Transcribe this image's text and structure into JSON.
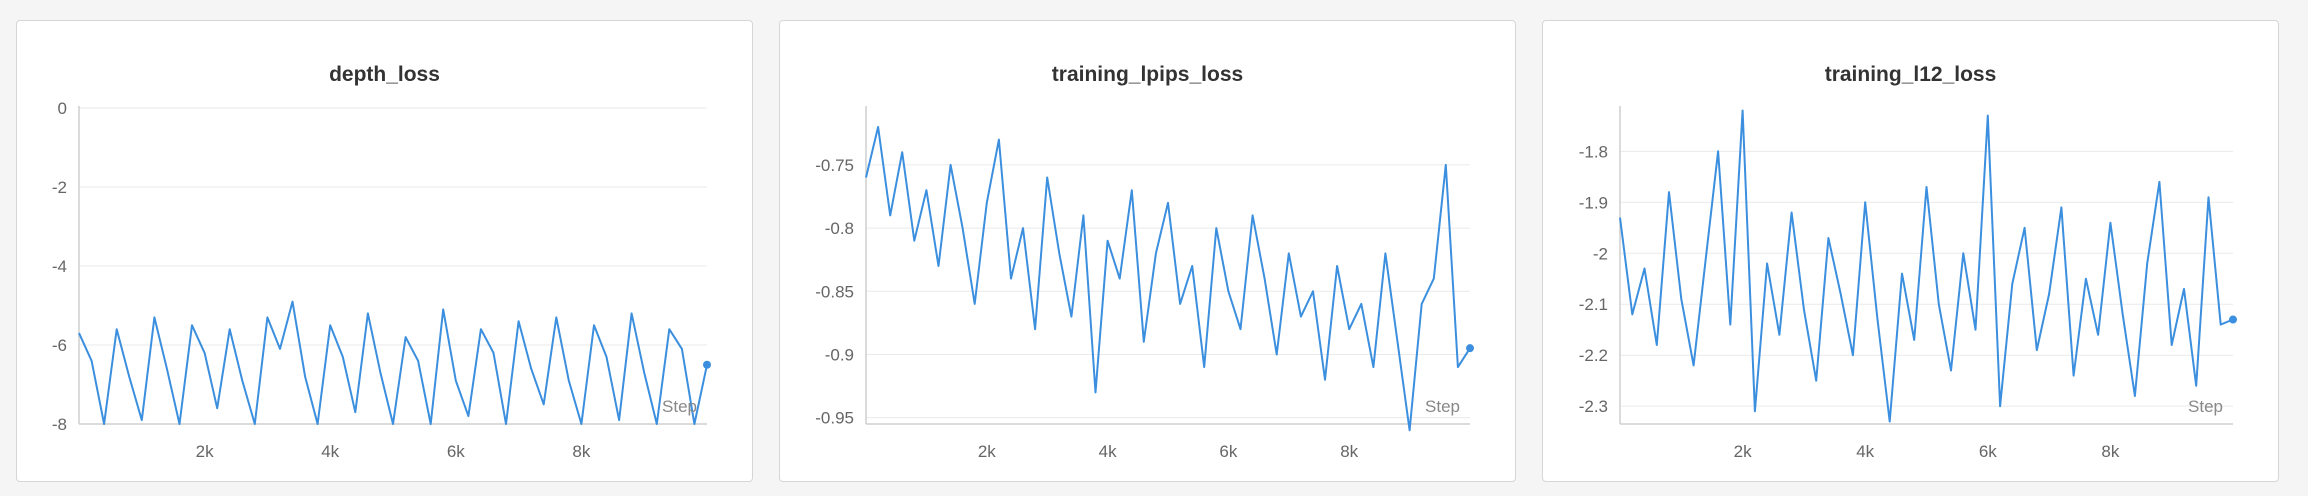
{
  "page": {
    "background": "#f5f5f5"
  },
  "colors": {
    "series": "#3b8fde",
    "grid": "#eaeaea",
    "axis": "#cfcfcf"
  },
  "x_axis_label": "Step",
  "chart_data": [
    {
      "type": "line",
      "title": "depth_loss",
      "xlabel": "Step",
      "ylabel": "",
      "xlim": [
        0,
        10000
      ],
      "ylim": [
        -8,
        0
      ],
      "xticks": [
        2000,
        4000,
        6000,
        8000
      ],
      "xtick_labels": [
        "2k",
        "4k",
        "6k",
        "8k"
      ],
      "yticks": [
        0,
        -2,
        -4,
        -6,
        -8
      ],
      "ytick_labels": [
        "0",
        "-2",
        "-4",
        "-6",
        "-8"
      ],
      "grid": true,
      "series": [
        {
          "color": "#3b8fde",
          "x": [
            0,
            200,
            400,
            600,
            800,
            1000,
            1200,
            1400,
            1600,
            1800,
            2000,
            2200,
            2400,
            2600,
            2800,
            3000,
            3200,
            3400,
            3600,
            3800,
            4000,
            4200,
            4400,
            4600,
            4800,
            5000,
            5200,
            5400,
            5600,
            5800,
            6000,
            6200,
            6400,
            6600,
            6800,
            7000,
            7200,
            7400,
            7600,
            7800,
            8000,
            8200,
            8400,
            8600,
            8800,
            9000,
            9200,
            9400,
            9600,
            9800,
            10000
          ],
          "y": [
            -5.7,
            -6.4,
            -8,
            -5.6,
            -6.8,
            -7.9,
            -5.3,
            -6.6,
            -8,
            -5.5,
            -6.2,
            -7.6,
            -5.6,
            -6.9,
            -8,
            -5.3,
            -6.1,
            -4.9,
            -6.8,
            -8,
            -5.5,
            -6.3,
            -7.7,
            -5.2,
            -6.7,
            -8,
            -5.8,
            -6.4,
            -8,
            -5.1,
            -6.9,
            -7.8,
            -5.6,
            -6.2,
            -8,
            -5.4,
            -6.6,
            -7.5,
            -5.3,
            -6.9,
            -8,
            -5.5,
            -6.3,
            -7.9,
            -5.2,
            -6.7,
            -8,
            -5.6,
            -6.1,
            -8,
            -6.5
          ]
        }
      ]
    },
    {
      "type": "line",
      "title": "training_lpips_loss",
      "xlabel": "Step",
      "ylabel": "",
      "xlim": [
        0,
        10000
      ],
      "ylim": [
        -0.955,
        -0.705
      ],
      "xticks": [
        2000,
        4000,
        6000,
        8000
      ],
      "xtick_labels": [
        "2k",
        "4k",
        "6k",
        "8k"
      ],
      "yticks": [
        -0.75,
        -0.8,
        -0.85,
        -0.9,
        -0.95
      ],
      "ytick_labels": [
        "-0.75",
        "-0.8",
        "-0.85",
        "-0.9",
        "-0.95"
      ],
      "grid": true,
      "series": [
        {
          "color": "#3b8fde",
          "x": [
            0,
            200,
            400,
            600,
            800,
            1000,
            1200,
            1400,
            1600,
            1800,
            2000,
            2200,
            2400,
            2600,
            2800,
            3000,
            3200,
            3400,
            3600,
            3800,
            4000,
            4200,
            4400,
            4600,
            4800,
            5000,
            5200,
            5400,
            5600,
            5800,
            6000,
            6200,
            6400,
            6600,
            6800,
            7000,
            7200,
            7400,
            7600,
            7800,
            8000,
            8200,
            8400,
            8600,
            8800,
            9000,
            9200,
            9400,
            9600,
            9800,
            10000
          ],
          "y": [
            -0.76,
            -0.72,
            -0.79,
            -0.74,
            -0.81,
            -0.77,
            -0.83,
            -0.75,
            -0.8,
            -0.86,
            -0.78,
            -0.73,
            -0.84,
            -0.8,
            -0.88,
            -0.76,
            -0.82,
            -0.87,
            -0.79,
            -0.93,
            -0.81,
            -0.84,
            -0.77,
            -0.89,
            -0.82,
            -0.78,
            -0.86,
            -0.83,
            -0.91,
            -0.8,
            -0.85,
            -0.88,
            -0.79,
            -0.84,
            -0.9,
            -0.82,
            -0.87,
            -0.85,
            -0.92,
            -0.83,
            -0.88,
            -0.86,
            -0.91,
            -0.82,
            -0.89,
            -0.96,
            -0.86,
            -0.84,
            -0.75,
            -0.91,
            -0.895
          ]
        }
      ]
    },
    {
      "type": "line",
      "title": "training_l12_loss",
      "xlabel": "Step",
      "ylabel": "",
      "xlim": [
        0,
        10000
      ],
      "ylim": [
        -2.335,
        -1.715
      ],
      "xticks": [
        2000,
        4000,
        6000,
        8000
      ],
      "xtick_labels": [
        "2k",
        "4k",
        "6k",
        "8k"
      ],
      "yticks": [
        -1.8,
        -1.9,
        -2,
        -2.1,
        -2.2,
        -2.3
      ],
      "ytick_labels": [
        "-1.8",
        "-1.9",
        "-2",
        "-2.1",
        "-2.2",
        "-2.3"
      ],
      "grid": true,
      "series": [
        {
          "color": "#3b8fde",
          "x": [
            0,
            200,
            400,
            600,
            800,
            1000,
            1200,
            1400,
            1600,
            1800,
            2000,
            2200,
            2400,
            2600,
            2800,
            3000,
            3200,
            3400,
            3600,
            3800,
            4000,
            4200,
            4400,
            4600,
            4800,
            5000,
            5200,
            5400,
            5600,
            5800,
            6000,
            6200,
            6400,
            6600,
            6800,
            7000,
            7200,
            7400,
            7600,
            7800,
            8000,
            8200,
            8400,
            8600,
            8800,
            9000,
            9200,
            9400,
            9600,
            9800,
            10000
          ],
          "y": [
            -1.93,
            -2.12,
            -2.03,
            -2.18,
            -1.88,
            -2.09,
            -2.22,
            -2.01,
            -1.8,
            -2.14,
            -1.72,
            -2.31,
            -2.02,
            -2.16,
            -1.92,
            -2.11,
            -2.25,
            -1.97,
            -2.08,
            -2.2,
            -1.9,
            -2.13,
            -2.33,
            -2.04,
            -2.17,
            -1.87,
            -2.1,
            -2.23,
            -2.0,
            -2.15,
            -1.73,
            -2.3,
            -2.06,
            -1.95,
            -2.19,
            -2.08,
            -1.91,
            -2.24,
            -2.05,
            -2.16,
            -1.94,
            -2.12,
            -2.28,
            -2.02,
            -1.86,
            -2.18,
            -2.07,
            -2.26,
            -1.89,
            -2.14,
            -2.13
          ]
        }
      ]
    }
  ]
}
